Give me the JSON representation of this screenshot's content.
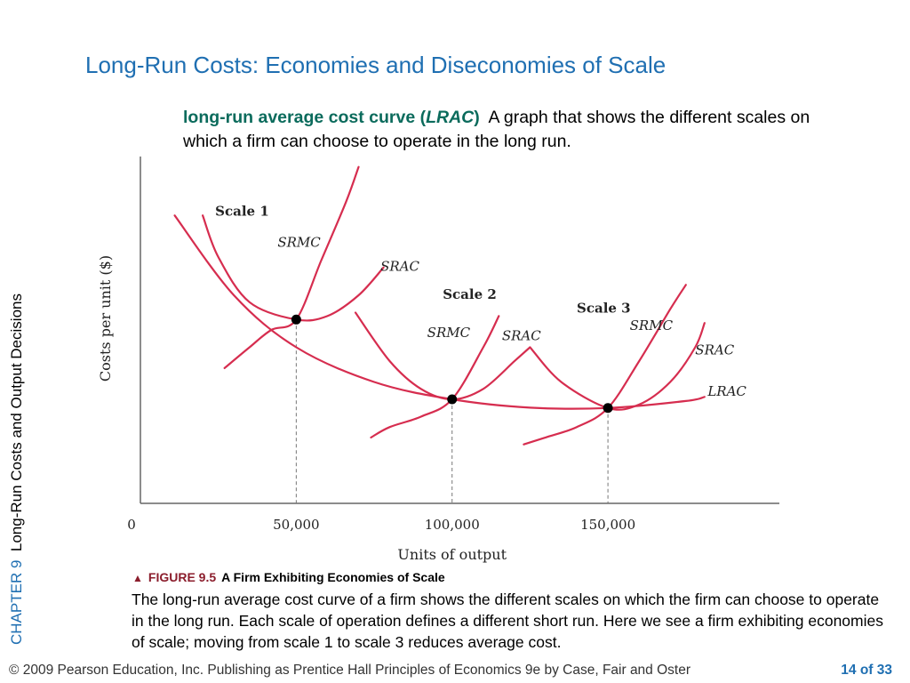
{
  "slide": {
    "title": "Long-Run Costs: Economies and Diseconomies of Scale",
    "definition_term": "long-run average cost curve (",
    "definition_abbr": "LRAC",
    "definition_close": ")",
    "definition_text": "A graph that shows the different scales on which a firm can choose to operate in the long run.",
    "side_chapter": "CHAPTER 9",
    "side_title": "Long-Run Costs and Output Decisions",
    "caption_figure": "FIGURE 9.5",
    "caption_title": "A Firm Exhibiting Economies of Scale",
    "caption_text": "The long-run average cost curve of a firm shows the different scales on which the firm can choose to operate in the long run. Each scale of operation defines a different short run. Here we see a firm exhibiting economies of scale; moving from scale 1 to scale 3 reduces average cost.",
    "footer_left": "© 2009 Pearson Education, Inc. Publishing as Prentice Hall   Principles of Economics 9e by Case, Fair and Oster",
    "footer_page": "14 of 33"
  },
  "chart_data": {
    "type": "line",
    "xlabel": "Units of output",
    "ylabel": "Costs per unit ($)",
    "x_ticks": [
      {
        "value": 0,
        "label": "0"
      },
      {
        "value": 50000,
        "label": "50,000"
      },
      {
        "value": 100000,
        "label": "100,000"
      },
      {
        "value": 150000,
        "label": "150,000"
      }
    ],
    "xlim": [
      0,
      205000
    ],
    "ylim": [
      0,
      100
    ],
    "y_ticks_shown": false,
    "grid": false,
    "curve_color": "#d62d4f",
    "series": [
      {
        "name": "LRAC",
        "x": [
          11000,
          30000,
          50000,
          75000,
          100000,
          125000,
          150000,
          175000,
          181000
        ],
        "y": [
          83,
          60,
          45,
          35,
          30,
          27.6,
          27.5,
          29.5,
          30.7
        ]
      },
      {
        "name": "SRMC",
        "scale": "Scale 1",
        "x": [
          27000,
          35000,
          42000,
          50000,
          58000,
          66000,
          70000
        ],
        "y": [
          39,
          45,
          50,
          53,
          70,
          87,
          97
        ]
      },
      {
        "name": "SRAC",
        "scale": "Scale 1",
        "x": [
          20000,
          25000,
          35000,
          50000,
          60000,
          70000,
          78000
        ],
        "y": [
          83,
          71,
          58,
          53,
          54,
          60,
          68
        ]
      },
      {
        "name": "SRMC",
        "scale": "Scale 2",
        "x": [
          74000,
          80000,
          90000,
          100000,
          110000,
          115000
        ],
        "y": [
          19,
          22,
          25,
          30,
          45,
          54
        ]
      },
      {
        "name": "SRAC",
        "scale": "Scale 2",
        "x": [
          69000,
          80000,
          90000,
          100000,
          110000,
          120000,
          125000
        ],
        "y": [
          55,
          41,
          33,
          30,
          33,
          41,
          45
        ]
      },
      {
        "name": "SRMC",
        "scale": "Scale 3",
        "x": [
          123000,
          130000,
          140000,
          150000,
          160000,
          170000,
          175000
        ],
        "y": [
          17,
          19,
          22,
          27.5,
          41,
          56,
          63
        ]
      },
      {
        "name": "SRAC",
        "scale": "Scale 3",
        "x": [
          125000,
          135000,
          150000,
          160000,
          170000,
          178000,
          181000
        ],
        "y": [
          45,
          35,
          27.5,
          28.5,
          35,
          45,
          52
        ]
      }
    ],
    "points": [
      {
        "x": 50000,
        "y": 53
      },
      {
        "x": 100000,
        "y": 30
      },
      {
        "x": 150000,
        "y": 27.5
      }
    ],
    "annotations": [
      {
        "text": "Scale 1",
        "x": 24000,
        "y": 83,
        "bold": true
      },
      {
        "text": "SRMC",
        "x": 44000,
        "y": 74,
        "bold": false
      },
      {
        "text": "SRAC",
        "x": 77000,
        "y": 67,
        "bold": false
      },
      {
        "text": "Scale 2",
        "x": 97000,
        "y": 59,
        "bold": true
      },
      {
        "text": "SRMC",
        "x": 92000,
        "y": 48,
        "bold": false
      },
      {
        "text": "SRAC",
        "x": 116000,
        "y": 47,
        "bold": false
      },
      {
        "text": "Scale 3",
        "x": 140000,
        "y": 55,
        "bold": true
      },
      {
        "text": "SRMC",
        "x": 157000,
        "y": 50,
        "bold": false
      },
      {
        "text": "SRAC",
        "x": 178000,
        "y": 43,
        "bold": false
      },
      {
        "text": "LRAC",
        "x": 182000,
        "y": 31,
        "bold": false
      }
    ]
  }
}
